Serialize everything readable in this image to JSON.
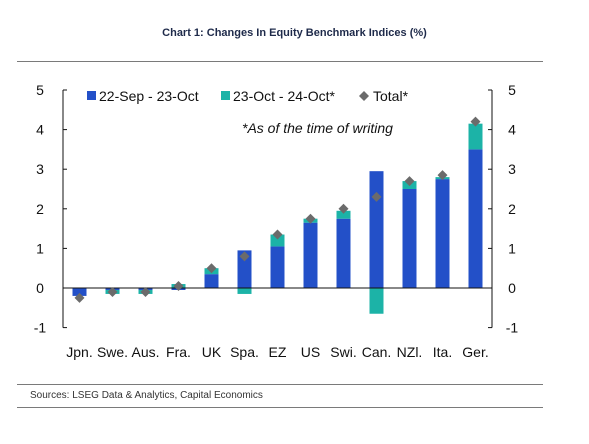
{
  "title": "Chart 1: Changes In Equity Benchmark Indices (%)",
  "source": "Sources: LSEG Data & Analytics, Capital Economics",
  "note": "*As of the time of writing",
  "colors": {
    "series1": "#2350c8",
    "series2": "#1cb3a7",
    "total": "#6b6b6b"
  },
  "chart_data": {
    "type": "bar",
    "stacked": true,
    "categories": [
      "Jpn.",
      "Swe.",
      "Aus.",
      "Fra.",
      "UK",
      "Spa.",
      "EZ",
      "US",
      "Swi.",
      "Can.",
      "NZl.",
      "Ita.",
      "Ger."
    ],
    "series": [
      {
        "name": "22-Sep - 23-Oct",
        "values": [
          -0.2,
          -0.05,
          -0.05,
          -0.05,
          0.35,
          0.95,
          1.05,
          1.65,
          1.75,
          2.95,
          2.5,
          2.75,
          3.5
        ]
      },
      {
        "name": "23-Oct - 24-Oct*",
        "values": [
          0.0,
          -0.1,
          -0.1,
          0.1,
          0.15,
          -0.15,
          0.3,
          0.1,
          0.2,
          -0.65,
          0.2,
          0.05,
          0.65
        ]
      }
    ],
    "total": {
      "name": "Total*",
      "values": [
        -0.25,
        -0.1,
        -0.1,
        0.05,
        0.5,
        0.8,
        1.35,
        1.75,
        2.0,
        2.3,
        2.7,
        2.85,
        4.2
      ]
    },
    "ylim": [
      -1,
      5
    ],
    "yticks": [
      -1,
      0,
      1,
      2,
      3,
      4,
      5
    ],
    "ytick_labels": [
      "-1",
      "0",
      "1",
      "2",
      "3",
      "4",
      "5"
    ],
    "xlabel": "",
    "ylabel": "",
    "legend_position": "top-left",
    "grid": false
  }
}
